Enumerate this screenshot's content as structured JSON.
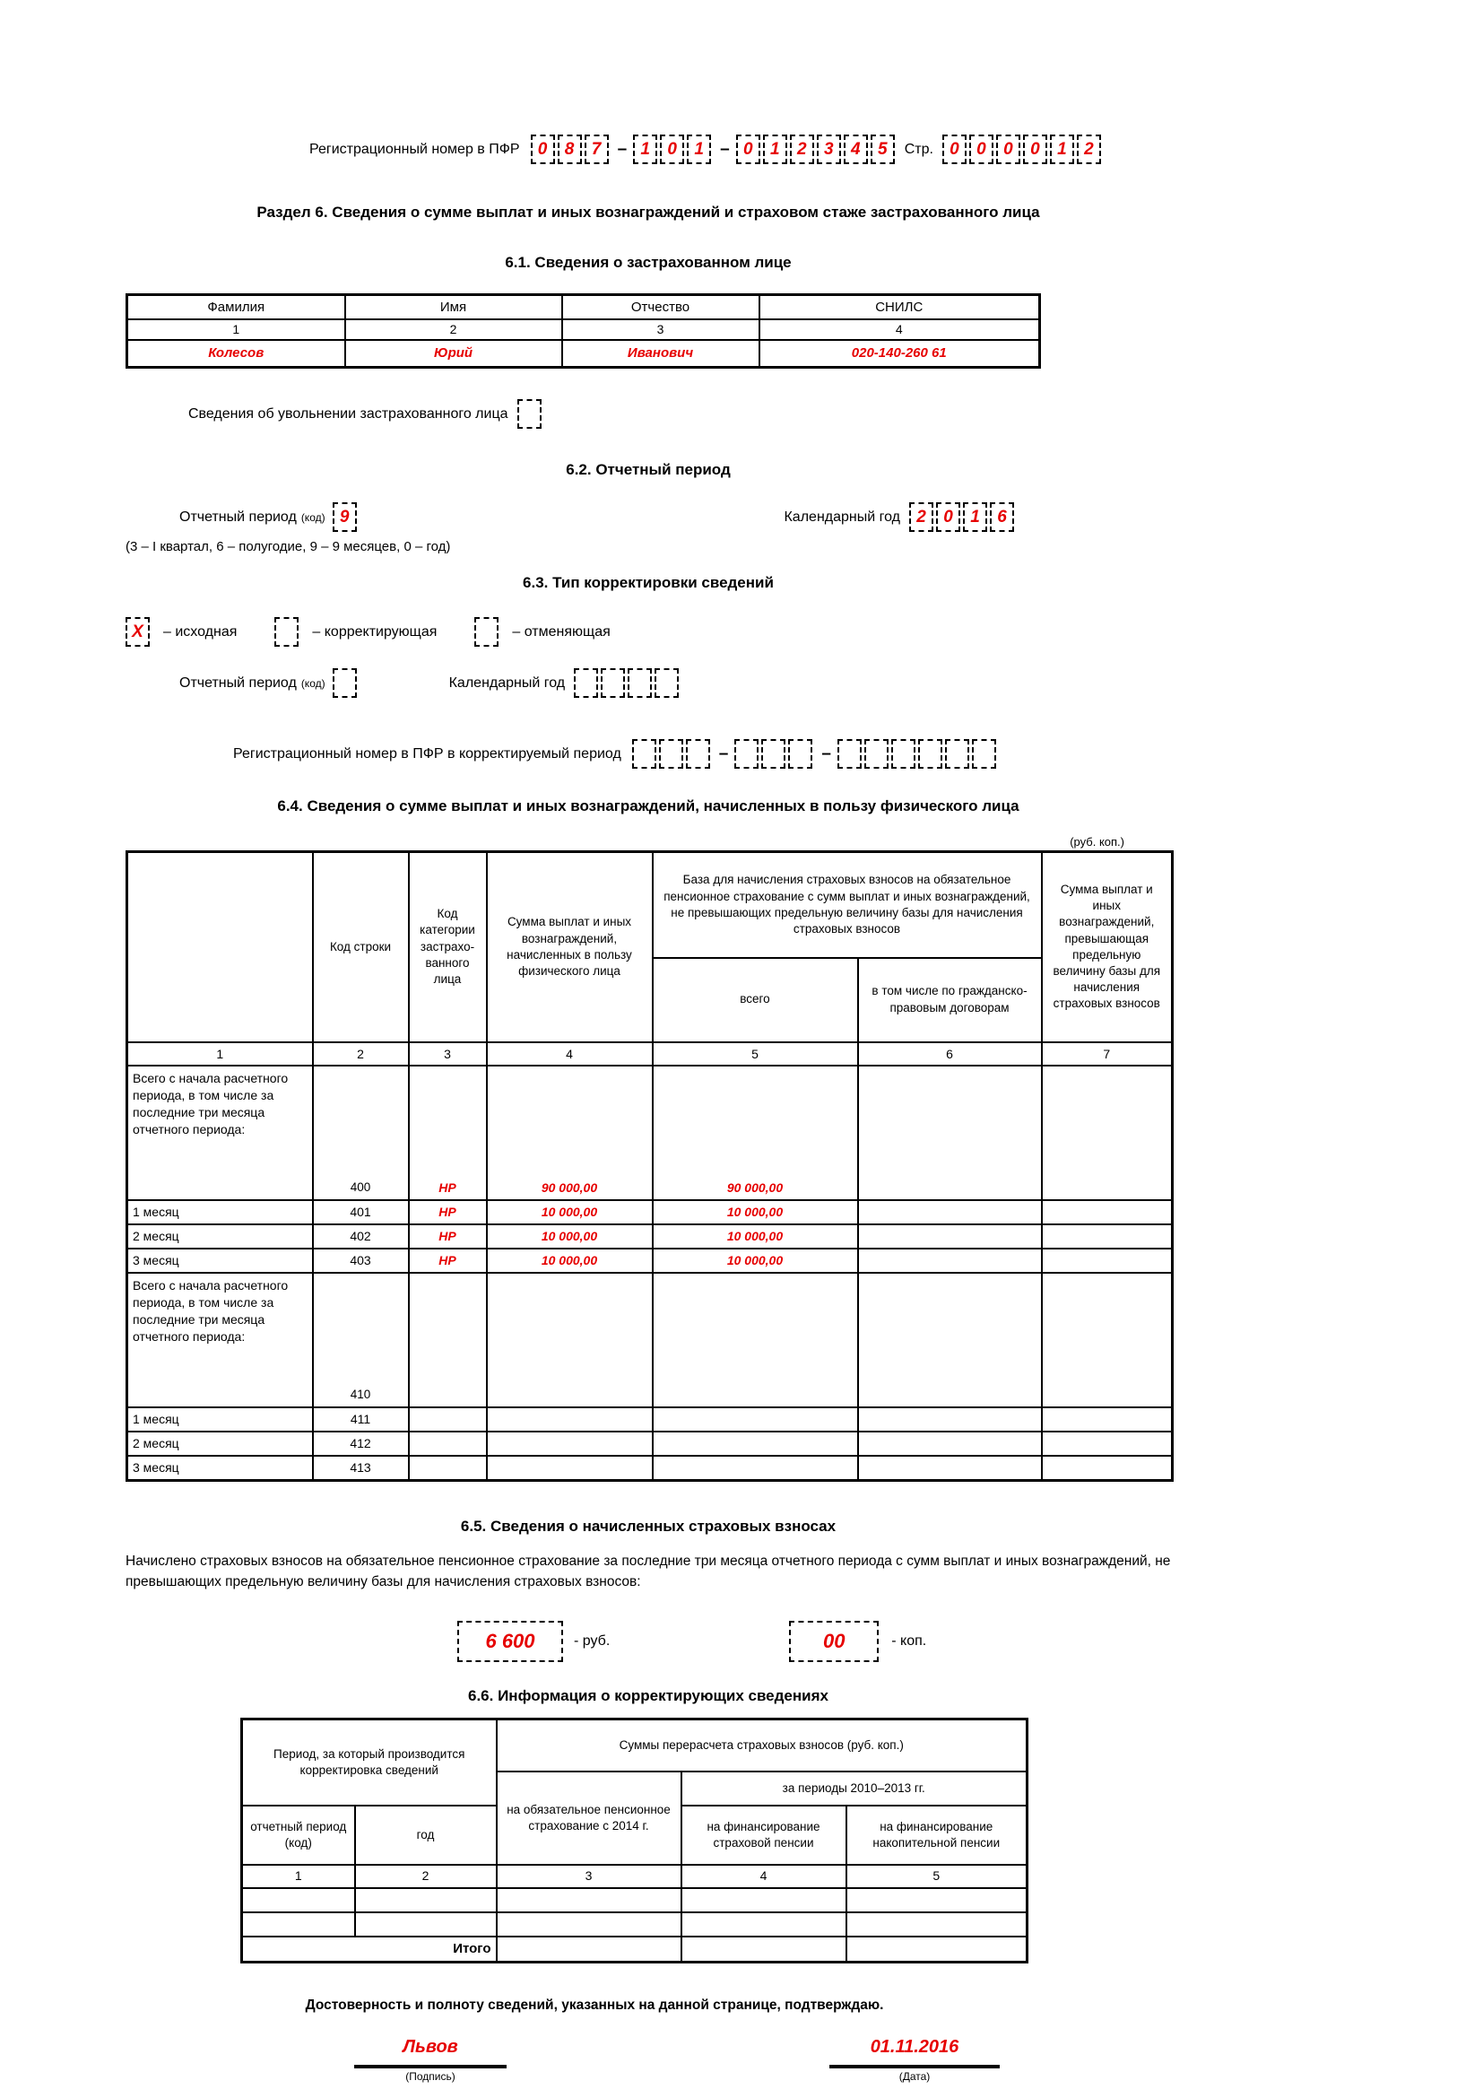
{
  "ui": {
    "dash": "–",
    "accent_red": "#e60000"
  },
  "header": {
    "reg_label": "Регистрационный номер в ПФР",
    "reg_groups": [
      [
        "0",
        "8",
        "7"
      ],
      [
        "1",
        "0",
        "1"
      ],
      [
        "0",
        "1",
        "2",
        "3",
        "4",
        "5"
      ]
    ],
    "page_label": "Стр.",
    "page_digits": [
      "0",
      "0",
      "0",
      "0",
      "1",
      "2"
    ]
  },
  "section_title": "Раздел 6. Сведения о сумме выплат и иных вознаграждений и страховом стаже застрахованного лица",
  "s61": {
    "title": "6.1. Сведения о застрахованном лице",
    "headers": [
      "Фамилия",
      "Имя",
      "Отчество",
      "СНИЛС"
    ],
    "numbers": [
      "1",
      "2",
      "3",
      "4"
    ],
    "values": [
      "Колесов",
      "Юрий",
      "Иванович",
      "020-140-260 61"
    ],
    "dismissal_label": "Сведения об увольнении застрахованного лица",
    "dismissal_value": [
      ""
    ]
  },
  "s62": {
    "title": "6.2. Отчетный период",
    "period_label": "Отчетный период",
    "period_code_label": "(код)",
    "period_value": [
      "9"
    ],
    "year_label": "Календарный год",
    "year_digits": [
      "2",
      "0",
      "1",
      "6"
    ],
    "note": "(3 – I квартал, 6 – полугодие, 9 – 9 месяцев, 0 – год)"
  },
  "s63": {
    "title": "6.3. Тип корректировки сведений",
    "options": [
      {
        "value": [
          "X"
        ],
        "label": "–  исходная"
      },
      {
        "value": [
          ""
        ],
        "label": "–  корректирующая"
      },
      {
        "value": [
          ""
        ],
        "label": "–  отменяющая"
      }
    ],
    "period_label": "Отчетный период",
    "period_code_label": "(код)",
    "period_value": [
      ""
    ],
    "year_label": "Календарный год",
    "year_digits": [
      "",
      "",
      "",
      ""
    ],
    "reg_corr_label": "Регистрационный номер в ПФР в корректируемый период",
    "reg_corr_groups": [
      [
        "",
        "",
        ""
      ],
      [
        "",
        "",
        ""
      ],
      [
        "",
        "",
        "",
        "",
        "",
        ""
      ]
    ]
  },
  "s64": {
    "title": "6.4. Сведения о сумме выплат и иных вознаграждений, начисленных в пользу физического лица",
    "currency_note": "(руб. коп.)",
    "head": {
      "col2": "Код строки",
      "col3": "Код категории застрахо- ванного лица",
      "col4": "Сумма выплат и иных вознаграждений, начисленных в пользу физического лица",
      "col56": "База для начисления страховых взносов на обязательное пенсионное страхование с сумм выплат и иных вознаграждений, не превышающих предельную величину базы для начисления страховых взносов",
      "col5": "всего",
      "col6": "в том числе  по гражданско-правовым договорам",
      "col7": "Сумма выплат и иных вознаграждений, превышающая предельную величину базы для начисления страховых взносов"
    },
    "numbers": [
      "1",
      "2",
      "3",
      "4",
      "5",
      "6",
      "7"
    ],
    "rows": [
      {
        "label": "Всего с начала расчетного периода, в том числе за последние три месяца отчетного периода:",
        "code": "400",
        "cat": "НР",
        "c4": "90 000,00",
        "c5": "90 000,00",
        "c6": "",
        "c7": ""
      },
      {
        "label": "1 месяц",
        "code": "401",
        "cat": "НР",
        "c4": "10 000,00",
        "c5": "10 000,00",
        "c6": "",
        "c7": ""
      },
      {
        "label": "2 месяц",
        "code": "402",
        "cat": "НР",
        "c4": "10 000,00",
        "c5": "10 000,00",
        "c6": "",
        "c7": ""
      },
      {
        "label": "3 месяц",
        "code": "403",
        "cat": "НР",
        "c4": "10 000,00",
        "c5": "10 000,00",
        "c6": "",
        "c7": ""
      },
      {
        "label": "Всего с начала расчетного периода, в том числе за последние три месяца отчетного периода:",
        "code": "410",
        "cat": "",
        "c4": "",
        "c5": "",
        "c6": "",
        "c7": ""
      },
      {
        "label": "1 месяц",
        "code": "411",
        "cat": "",
        "c4": "",
        "c5": "",
        "c6": "",
        "c7": ""
      },
      {
        "label": "2 месяц",
        "code": "412",
        "cat": "",
        "c4": "",
        "c5": "",
        "c6": "",
        "c7": ""
      },
      {
        "label": "3 месяц",
        "code": "413",
        "cat": "",
        "c4": "",
        "c5": "",
        "c6": "",
        "c7": ""
      }
    ]
  },
  "s65": {
    "title": "6.5. Сведения о начисленных страховых взносах",
    "text": "Начислено страховых взносов  на обязательное пенсионное страхование за последние три месяца отчетного периода с сумм выплат и иных вознаграждений, не превышающих предельную величину базы для начисления страховых взносов:",
    "rub_value": "6 600",
    "rub_label": "- руб.",
    "kop_value": "00",
    "kop_label": "-  коп."
  },
  "s66": {
    "title": "6.6. Информация о корректирующих сведениях",
    "head_period": "Период, за который производится корректировка сведений",
    "head_sums": "Суммы перерасчета страховых взносов (руб. коп.)",
    "head_ops": "на обязательное пенсионное страхование с 2014 г.",
    "head_2010_2013": "за периоды 2010–2013 гг.",
    "head_insurance": "на финансирование страховой пенсии",
    "head_funded": "на финансирование накопительной пенсии",
    "head_report_period": "отчетный период (код)",
    "head_year": "год",
    "numbers": [
      "1",
      "2",
      "3",
      "4",
      "5"
    ],
    "rows": [
      [
        "",
        "",
        "",
        "",
        ""
      ],
      [
        "",
        "",
        "",
        "",
        ""
      ]
    ],
    "total_label": "Итого",
    "total_cells": [
      "",
      "",
      ""
    ]
  },
  "footer": {
    "confirm_text": "Достоверность и полноту сведений, указанных на данной странице, подтверждаю.",
    "signature_value": "Львов",
    "signature_label": "(Подпись)",
    "date_value": "01.11.2016",
    "date_label": "(Дата)"
  }
}
